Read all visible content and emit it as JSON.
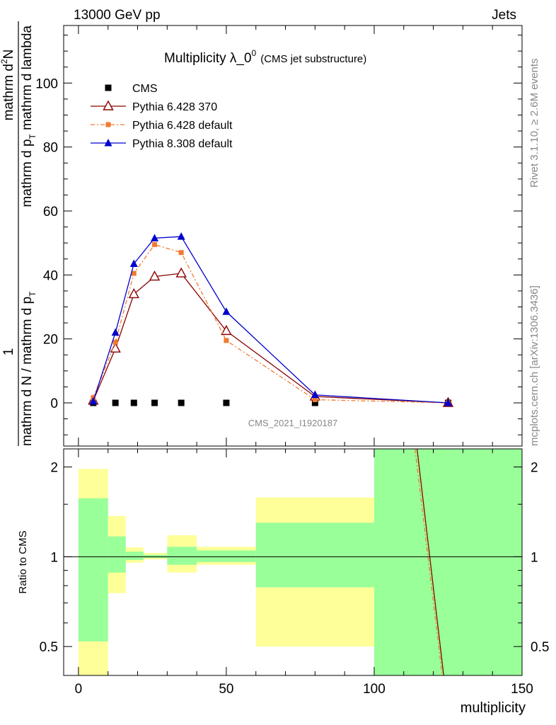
{
  "header": {
    "left": "13000 GeV pp",
    "right": "Jets"
  },
  "side_text": {
    "rivet": "Rivet 3.1.10, ≥ 2.6M events",
    "mcplots": "mcplots.cern.ch [arXiv:1306.3436]"
  },
  "watermark": "CMS_2021_I1920187",
  "chart_data": [
    {
      "type": "line",
      "title_main": "Multiplicity λ_0",
      "title_sup": "0",
      "title_sub": "(CMS jet substructure)",
      "ylabel_numerator": "1",
      "ylabel_denominator": "mathrm d N / mathrm d p",
      "ylabel_denominator_tail": "mathrm d p",
      "ylabel_denominator_end": "mathrm d lambda",
      "ylabel_sub": "T",
      "ylabel_top": "mathrm d",
      "ylabel_top_sup": "2",
      "ylabel_top_end": "N",
      "xlim": [
        -5,
        150
      ],
      "ylim": [
        -13.5,
        118
      ],
      "yticks": [
        0,
        20,
        40,
        60,
        80,
        100
      ],
      "series": [
        {
          "name": "CMS",
          "marker": "square",
          "color": "#000000",
          "x": [
            5,
            12.5,
            18.75,
            25.75,
            34.75,
            50,
            80,
            125
          ],
          "y": [
            0,
            0,
            0,
            0,
            0,
            0,
            0,
            0
          ]
        },
        {
          "name": "Pythia 6.428 370",
          "marker": "open-triangle",
          "color": "#8b0000",
          "dash": "",
          "x": [
            5,
            12.5,
            18.75,
            25.75,
            34.75,
            50,
            80,
            125
          ],
          "y": [
            0.7,
            17,
            34,
            39.5,
            40.5,
            22.5,
            2,
            0
          ]
        },
        {
          "name": "Pythia 6.428 default",
          "marker": "square",
          "color": "#f07a30",
          "dash": "6 3 2 3",
          "x": [
            5,
            12.5,
            18.75,
            25.75,
            34.75,
            50,
            80,
            125
          ],
          "y": [
            1.6,
            19,
            40.5,
            49.5,
            47,
            19.5,
            1,
            0
          ]
        },
        {
          "name": "Pythia 8.308 default",
          "marker": "triangle",
          "color": "#0000cc",
          "dash": "",
          "x": [
            5,
            12.5,
            18.75,
            25.75,
            34.75,
            50,
            80,
            125
          ],
          "y": [
            0.5,
            22,
            43.5,
            51.5,
            52,
            28.5,
            2.5,
            0
          ]
        }
      ]
    },
    {
      "type": "area",
      "ylabel": "Ratio to CMS",
      "xlabel": "multiplicity",
      "xlim": [
        -5,
        150
      ],
      "ylim": [
        0.4,
        2.3
      ],
      "log_y": true,
      "yticks": [
        0.5,
        1,
        2
      ],
      "xticks": [
        0,
        50,
        100,
        150
      ],
      "bands": [
        {
          "x0": 0,
          "x1": 10,
          "yellow": [
            0.4,
            1.97
          ],
          "green": [
            0.52,
            1.57
          ]
        },
        {
          "x0": 10,
          "x1": 16,
          "yellow": [
            0.755,
            1.37
          ],
          "green": [
            0.885,
            1.17
          ]
        },
        {
          "x0": 16,
          "x1": 22,
          "yellow": [
            0.955,
            1.075
          ],
          "green": [
            0.975,
            1.04
          ]
        },
        {
          "x0": 22,
          "x1": 30,
          "yellow": [
            0.98,
            1.03
          ],
          "green": [
            0.99,
            1.015
          ]
        },
        {
          "x0": 30,
          "x1": 40,
          "yellow": [
            0.885,
            1.18
          ],
          "green": [
            0.94,
            1.08
          ]
        },
        {
          "x0": 40,
          "x1": 60,
          "yellow": [
            0.94,
            1.08
          ],
          "green": [
            0.96,
            1.05
          ]
        },
        {
          "x0": 60,
          "x1": 100,
          "yellow": [
            0.5,
            1.58
          ],
          "green": [
            0.79,
            1.3
          ]
        },
        {
          "x0": 100,
          "x1": 150,
          "yellow": [
            0.4,
            2.3
          ],
          "green": [
            0.4,
            2.3
          ]
        }
      ],
      "lines": [
        {
          "name": "Pythia 6.428 370",
          "color": "#8b0000",
          "x": [
            114.5,
            123.5
          ],
          "y": [
            2.3,
            0.4
          ]
        },
        {
          "name": "Pythia 6.428 default",
          "color": "#f07a30",
          "x": [
            113.8,
            123.0
          ],
          "y": [
            2.3,
            0.4
          ]
        }
      ]
    }
  ]
}
